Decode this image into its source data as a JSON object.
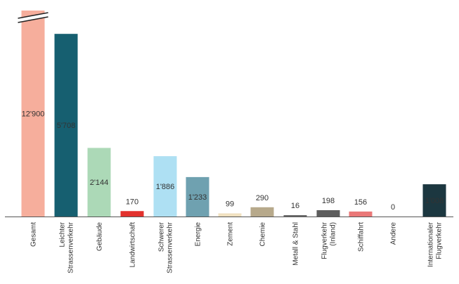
{
  "chart_data": {
    "type": "bar",
    "title": "",
    "xlabel": "",
    "ylabel": "",
    "axis_break": true,
    "grid": false,
    "categories": [
      [
        "Gesamt"
      ],
      [
        "Leichter",
        "Strassenverkehr"
      ],
      [
        "Gebäude"
      ],
      [
        "Landwirtschaft"
      ],
      [
        "Schwerer",
        "Strassenverkehr"
      ],
      [
        "Energie"
      ],
      [
        "Zement"
      ],
      [
        "Chemie"
      ],
      [
        "Metall & Stahl"
      ],
      [
        "Flugverkehr",
        "(Inland)"
      ],
      [
        "Schiffahrt"
      ],
      [
        "Andere"
      ],
      [
        "Internationaler",
        "Flugverkehr"
      ]
    ],
    "values": [
      12900,
      5708,
      2144,
      170,
      1886,
      1233,
      99,
      290,
      16,
      198,
      156,
      0,
      1008
    ],
    "value_labels": [
      "12'900",
      "5'708",
      "2'144",
      "170",
      "1'886",
      "1'233",
      "99",
      "290",
      "16",
      "198",
      "156",
      "0",
      "1'008"
    ],
    "label_inside": [
      true,
      true,
      true,
      false,
      true,
      true,
      false,
      false,
      false,
      false,
      false,
      false,
      true
    ],
    "colors": [
      "#f6ae9c",
      "#165f70",
      "#acd9b7",
      "#e2312d",
      "#aee0f3",
      "#6fa1b0",
      "#f0e1c0",
      "#b7a98b",
      "#6c6c6c",
      "#5d5d5d",
      "#ea7878",
      "#bbbbbb",
      "#1c3740"
    ],
    "label_colors": [
      "#333333",
      "#ffffff",
      "#333333",
      "#333333",
      "#333333",
      "#333333",
      "#333333",
      "#333333",
      "#333333",
      "#333333",
      "#333333",
      "#333333",
      "#ffffff"
    ],
    "ylim": [
      0,
      5800
    ]
  }
}
